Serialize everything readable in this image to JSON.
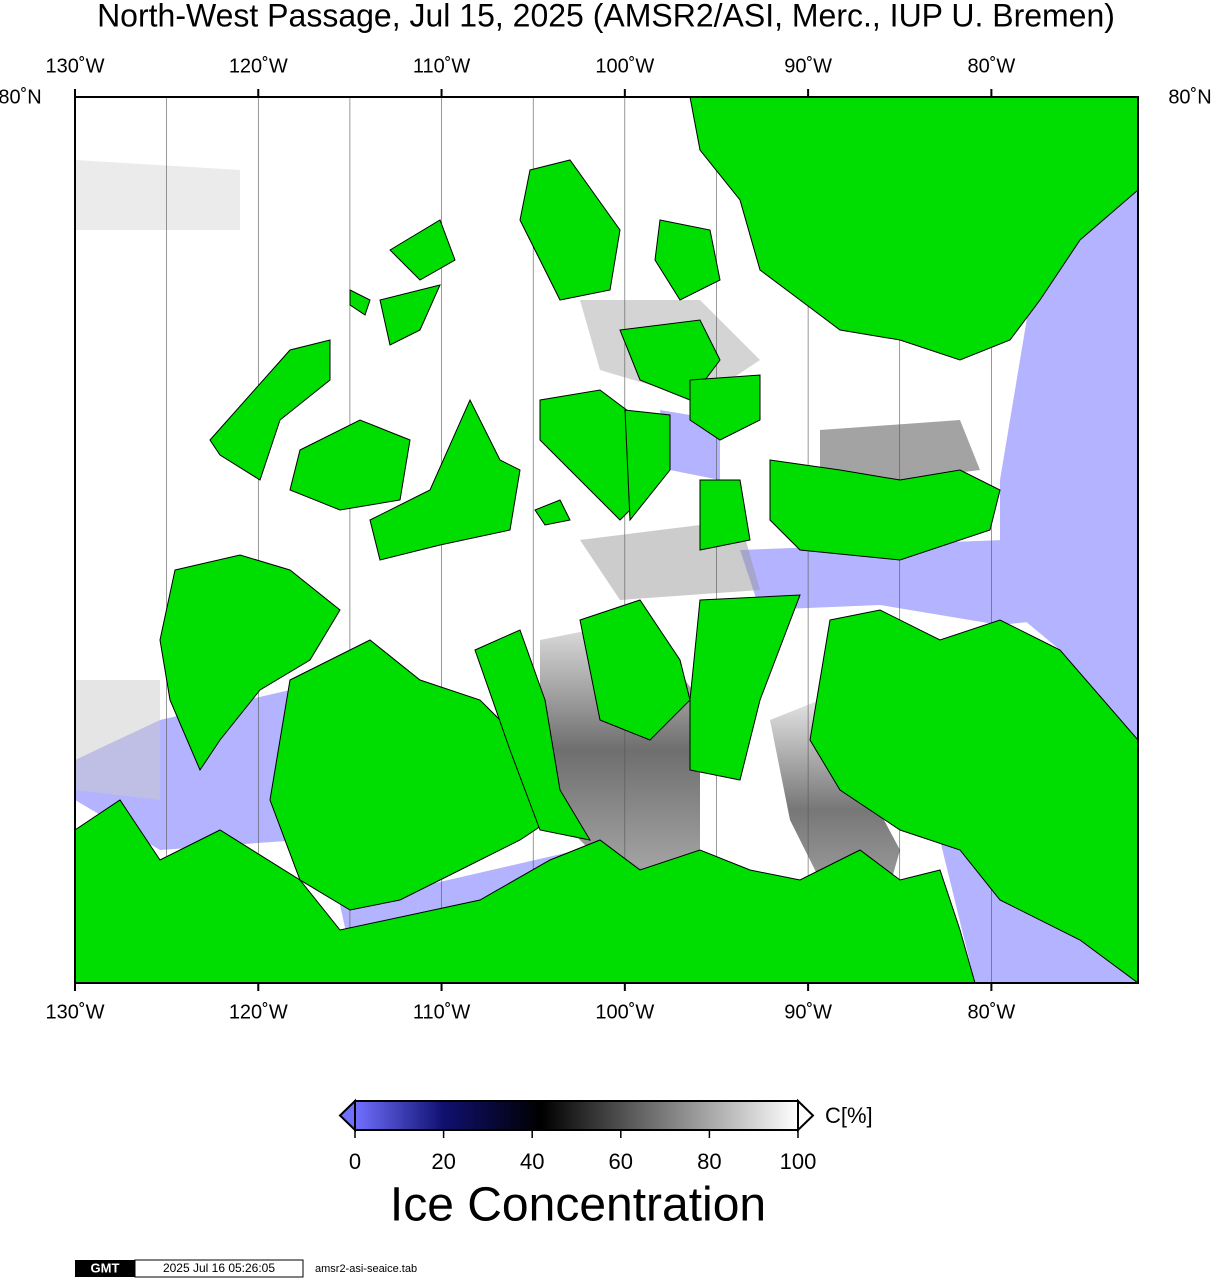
{
  "title": "North-West Passage, Jul 15, 2025 (AMSR2/ASI, Merc., IUP U. Bremen)",
  "map": {
    "lon_range": [
      -130,
      -72
    ],
    "lon_ticks": [
      {
        "value": -130,
        "label": "130˚W"
      },
      {
        "value": -120,
        "label": "120˚W"
      },
      {
        "value": -110,
        "label": "110˚W"
      },
      {
        "value": -100,
        "label": "100˚W"
      },
      {
        "value": -90,
        "label": "90˚W"
      },
      {
        "value": -80,
        "label": "80˚W"
      }
    ],
    "lat_label": "80˚N"
  },
  "colorbar": {
    "ticks": [
      0,
      20,
      40,
      60,
      80,
      100
    ],
    "unit": "C[%]",
    "title": "Ice Concentration"
  },
  "footer": {
    "logo": "GMT",
    "timestamp": "2025 Jul 16 05:26:05",
    "file": "amsr2-asi-seaice.tab"
  }
}
